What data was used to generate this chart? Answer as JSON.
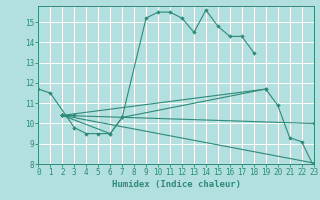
{
  "background_color": "#b2dfdf",
  "grid_color": "#d4f0f0",
  "line_color": "#2e8b77",
  "xlabel": "Humidex (Indice chaleur)",
  "xlim": [
    0,
    23
  ],
  "ylim": [
    8,
    15.8
  ],
  "yticks": [
    8,
    9,
    10,
    11,
    12,
    13,
    14,
    15
  ],
  "xticks": [
    0,
    1,
    2,
    3,
    4,
    5,
    6,
    7,
    8,
    9,
    10,
    11,
    12,
    13,
    14,
    15,
    16,
    17,
    18,
    19,
    20,
    21,
    22,
    23
  ],
  "curve_main_x": [
    0,
    1,
    3,
    4,
    5,
    6,
    7,
    9,
    10,
    11,
    12,
    13,
    14,
    15,
    16,
    17,
    18
  ],
  "curve_main_y": [
    11.7,
    11.5,
    9.8,
    9.5,
    9.5,
    9.5,
    10.3,
    15.2,
    15.5,
    15.5,
    15.2,
    14.5,
    15.6,
    14.8,
    14.3,
    14.3,
    13.5
  ],
  "curve_lower_x": [
    2,
    6,
    7,
    19,
    20,
    21,
    22,
    23
  ],
  "curve_lower_y": [
    10.4,
    9.5,
    10.3,
    11.7,
    10.9,
    9.3,
    9.1,
    7.9
  ],
  "fan_line1_x": [
    2,
    23
  ],
  "fan_line1_y": [
    10.4,
    8.05
  ],
  "fan_line2_x": [
    2,
    19
  ],
  "fan_line2_y": [
    10.4,
    11.7
  ],
  "fan_line3_x": [
    2,
    23
  ],
  "fan_line3_y": [
    10.4,
    10.0
  ],
  "hline_x": [
    2,
    3
  ],
  "hline_y": [
    10.4,
    10.4
  ],
  "marker": "D",
  "marker_size": 2.2,
  "line_width": 0.8,
  "tick_fontsize": 5.5,
  "xlabel_fontsize": 6.5
}
